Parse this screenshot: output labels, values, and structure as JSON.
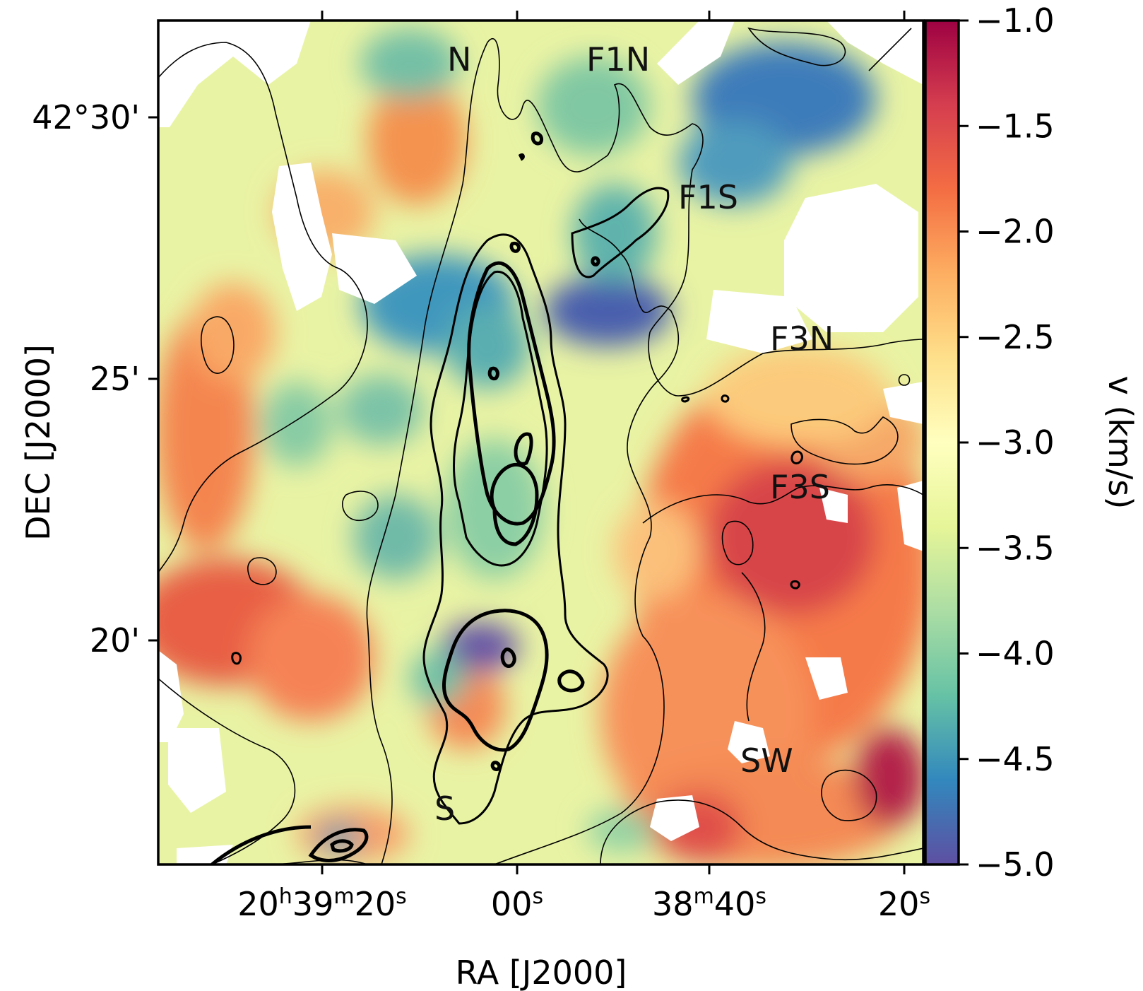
{
  "chart_data": {
    "type": "heatmap",
    "title": "",
    "xlabel": "RA [J2000]",
    "ylabel": "DEC [J2000]",
    "x_ticks": [
      {
        "parts": [
          [
            "20",
            "base"
          ],
          [
            "h",
            "sup"
          ],
          [
            "39",
            "base"
          ],
          [
            "m",
            "sup"
          ],
          [
            "20",
            "base"
          ],
          [
            "s",
            "sup"
          ]
        ]
      },
      {
        "parts": [
          [
            "00",
            "base"
          ],
          [
            "s",
            "sup"
          ]
        ]
      },
      {
        "parts": [
          [
            "38",
            "base"
          ],
          [
            "m",
            "sup"
          ],
          [
            "40",
            "base"
          ],
          [
            "s",
            "sup"
          ]
        ]
      },
      {
        "parts": [
          [
            "20",
            "base"
          ],
          [
            "s",
            "sup"
          ]
        ]
      }
    ],
    "y_ticks": [
      "42°30'",
      "25'",
      "20'"
    ],
    "colorbar": {
      "label": "v (km/s)",
      "ticks": [
        "−1.0",
        "−1.5",
        "−2.0",
        "−2.5",
        "−3.0",
        "−3.5",
        "−4.0",
        "−4.5",
        "−5.0"
      ],
      "range": [
        -5.0,
        -1.0
      ],
      "colormap": "Spectral",
      "colors": [
        "#5e4fa2",
        "#3288bd",
        "#66c2a5",
        "#abdda4",
        "#e6f598",
        "#ffffbf",
        "#fee08b",
        "#fdae61",
        "#f46d43",
        "#d53e4f",
        "#9e0142"
      ]
    },
    "regions": [
      "N",
      "F1N",
      "F1S",
      "F3N",
      "F3S",
      "SW",
      "S"
    ]
  }
}
